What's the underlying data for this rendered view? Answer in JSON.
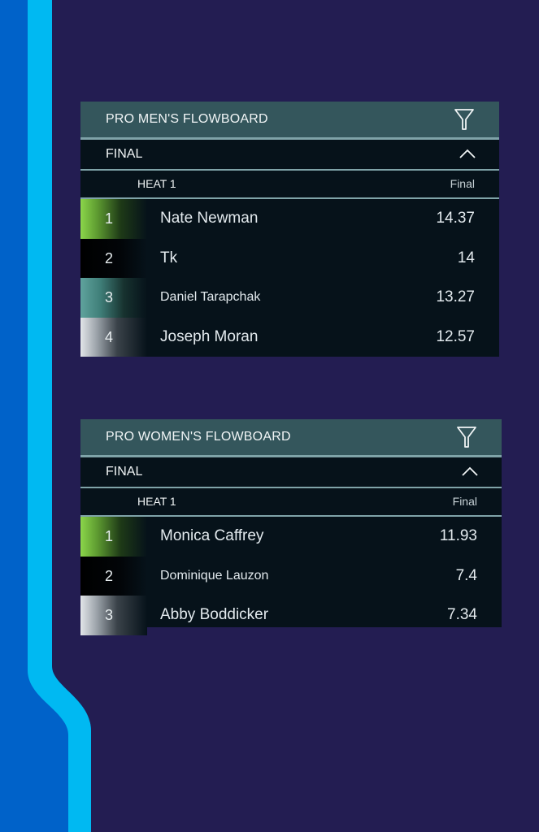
{
  "colors": {
    "background": "#231d52",
    "accent_bar": "#00b9f2",
    "accent_bar_dark": "#0062c9",
    "header_bg": "#34565c",
    "panel_bg": "#06121a",
    "rank_green": "#8bd64a",
    "rank_teal": "#5fa39d",
    "rank_silver": "#e2e5e9"
  },
  "boards": [
    {
      "title": "PRO MEN'S FLOWBOARD",
      "filter_icon": "filter-funnel-icon",
      "round": "FINAL",
      "round_toggle_icon": "chevron-up-icon",
      "heat": "HEAT 1",
      "heat_status": "Final",
      "results": [
        {
          "rank": "1",
          "name": "Nate Newman",
          "score": "14.37",
          "rank_color": "green"
        },
        {
          "rank": "2",
          "name": "Tk",
          "score": "14",
          "rank_color": "black"
        },
        {
          "rank": "3",
          "name": "Daniel Tarapchak",
          "score": "13.27",
          "rank_color": "teal"
        },
        {
          "rank": "4",
          "name": "Joseph Moran",
          "score": "12.57",
          "rank_color": "silver"
        }
      ]
    },
    {
      "title": "PRO WOMEN'S FLOWBOARD",
      "filter_icon": "filter-funnel-icon",
      "round": "FINAL",
      "round_toggle_icon": "chevron-up-icon",
      "heat": "HEAT 1",
      "heat_status": "Final",
      "results": [
        {
          "rank": "1",
          "name": "Monica Caffrey",
          "score": "11.93",
          "rank_color": "green"
        },
        {
          "rank": "2",
          "name": "Dominique Lauzon",
          "score": "7.4",
          "rank_color": "black"
        },
        {
          "rank": "3",
          "name": "Abby Boddicker",
          "score": "7.34",
          "rank_color": "silver"
        }
      ]
    }
  ]
}
